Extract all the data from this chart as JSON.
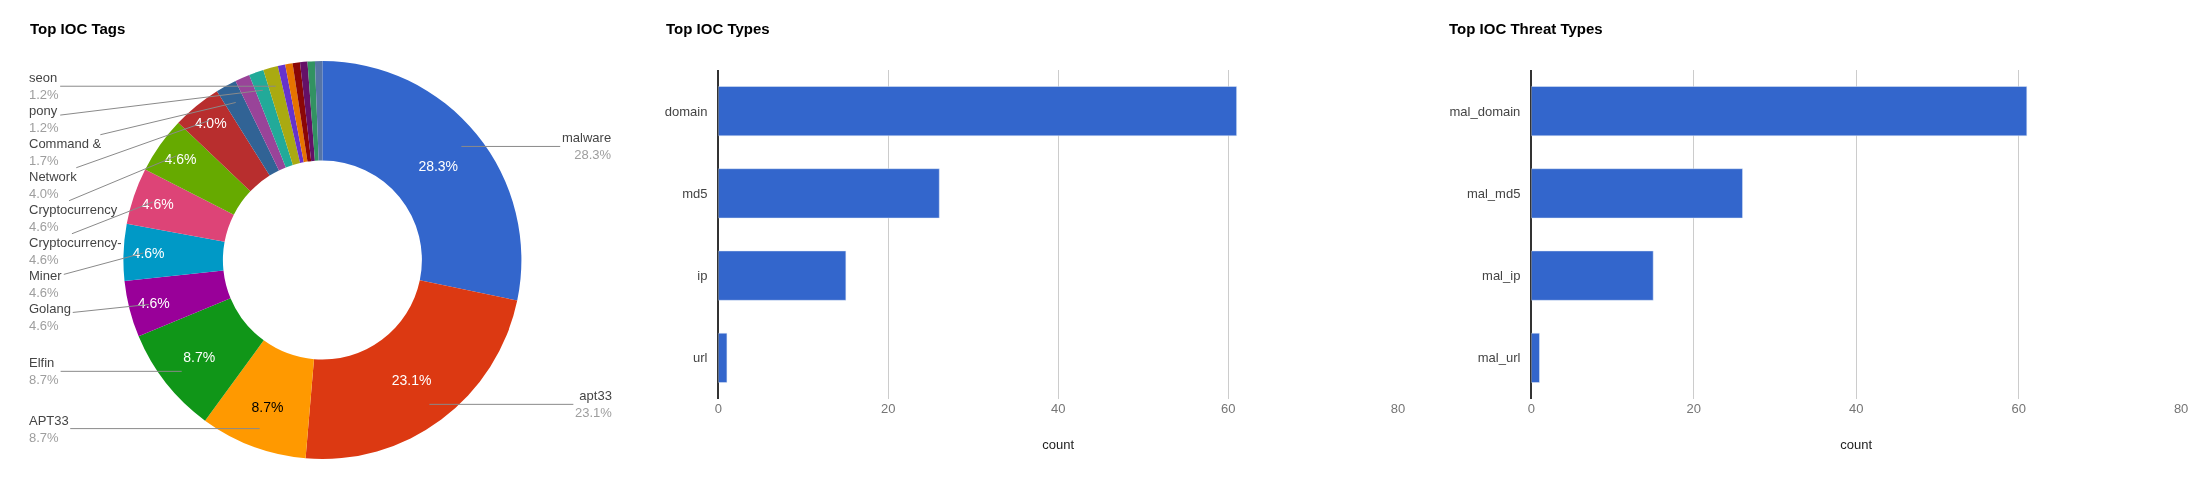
{
  "chart_data": [
    {
      "type": "donut",
      "title": "Top IOC Tags",
      "categories": [
        "malware",
        "apt33",
        "APT33",
        "Elfin",
        "Golang",
        "Miner",
        "Cryptocurrency-",
        "Cryptocurrency",
        "Network",
        "Command &",
        null,
        "pony",
        "seon",
        null,
        null,
        null,
        null,
        null,
        null
      ],
      "values": [
        28.3,
        23.1,
        8.7,
        8.7,
        4.6,
        4.6,
        4.6,
        4.6,
        4.0,
        1.7,
        1.2,
        1.2,
        1.2,
        0.6,
        0.6,
        0.6,
        0.6,
        0.6,
        0.6
      ],
      "colors": [
        "#3366cc",
        "#dc3912",
        "#ff9900",
        "#109618",
        "#990099",
        "#0099c6",
        "#dd4477",
        "#66aa00",
        "#b82e2e",
        "#316395",
        "#994499",
        "#22aa99",
        "#aaaa11",
        "#6633cc",
        "#e67300",
        "#8b0707",
        "#651067",
        "#329262",
        "#5574a6"
      ],
      "value_labels": [
        "28.3%",
        "23.1%",
        "8.7%",
        "8.7%",
        "4.6%",
        "4.6%",
        "4.6%",
        "4.6%",
        "4.0%",
        "1.7%",
        null,
        "1.2%",
        "1.2%",
        null,
        null,
        null,
        null,
        null,
        null
      ]
    },
    {
      "type": "bar",
      "orientation": "horizontal",
      "title": "Top IOC Types",
      "xlabel": "count",
      "categories": [
        "domain",
        "md5",
        "ip",
        "url"
      ],
      "values": [
        61,
        26,
        15,
        1
      ],
      "color": "#3366cc",
      "xlim": [
        0,
        80
      ],
      "xticks": [
        0,
        20,
        40,
        60,
        80
      ],
      "grid": "x"
    },
    {
      "type": "bar",
      "orientation": "horizontal",
      "title": "Top IOC Threat Types",
      "xlabel": "count",
      "categories": [
        "mal_domain",
        "mal_md5",
        "mal_ip",
        "mal_url"
      ],
      "values": [
        61,
        26,
        15,
        1
      ],
      "color": "#3366cc",
      "xlim": [
        0,
        80
      ],
      "xticks": [
        0,
        20,
        40,
        60,
        80
      ],
      "grid": "x"
    }
  ]
}
